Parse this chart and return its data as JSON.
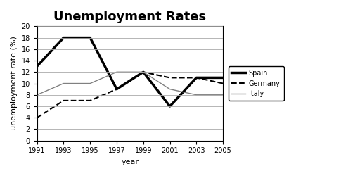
{
  "title": "Unemployment Rates",
  "xlabel": "year",
  "ylabel": "unemployment rate (%)",
  "years": [
    1991,
    1993,
    1995,
    1997,
    1999,
    2001,
    2003,
    2005
  ],
  "spain": [
    13,
    18,
    18,
    9,
    12,
    6,
    11,
    11
  ],
  "germany": [
    4,
    7,
    7,
    9,
    12,
    11,
    11,
    10
  ],
  "italy": [
    8,
    10,
    10,
    12,
    12,
    9,
    8,
    8
  ],
  "spain_color": "#000000",
  "germany_color": "#000000",
  "italy_color": "#808080",
  "ylim": [
    0,
    20
  ],
  "yticks": [
    0,
    2,
    4,
    6,
    8,
    10,
    12,
    14,
    16,
    18,
    20
  ],
  "xticks": [
    1991,
    1993,
    1995,
    1997,
    1999,
    2001,
    2003,
    2005
  ],
  "title_fontsize": 13,
  "axis_label_fontsize": 8,
  "tick_fontsize": 7,
  "legend_entries": [
    "Spain",
    "Germany",
    "Italy"
  ],
  "spain_linewidth": 2.5,
  "germany_linewidth": 1.5,
  "italy_linewidth": 1.0,
  "spain_linestyle": "-",
  "germany_linestyle": "-",
  "italy_linestyle": "-"
}
